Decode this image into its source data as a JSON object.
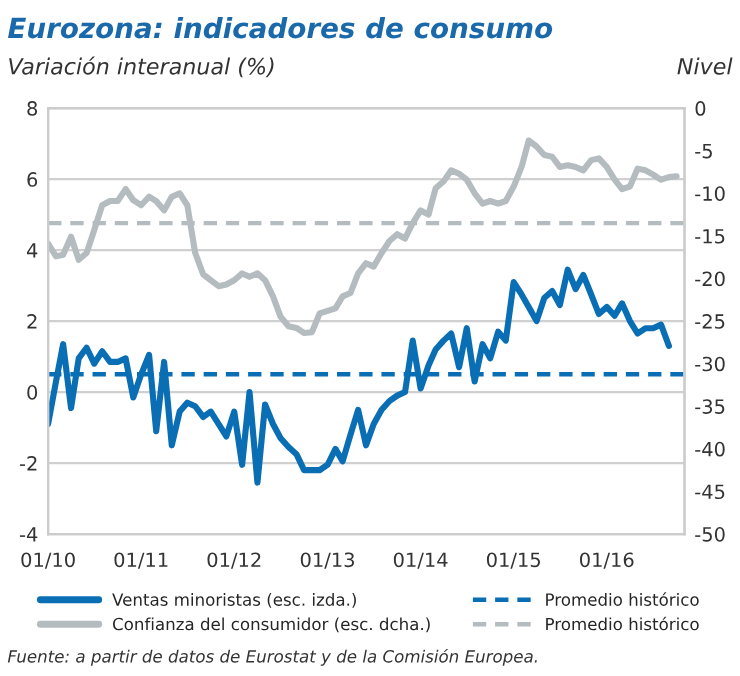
{
  "chart_data": {
    "type": "line",
    "title": "Eurozona: indicadores de consumo",
    "ylabel": "Variación interanual (%)",
    "y2label": "Nivel",
    "annotations": [
      "Fuente: a partir de datos de Eurostat y de la Comisión Europea."
    ],
    "x": [
      "2010-01",
      "2010-02",
      "2010-03",
      "2010-04",
      "2010-05",
      "2010-06",
      "2010-07",
      "2010-08",
      "2010-09",
      "2010-10",
      "2010-11",
      "2010-12",
      "2011-01",
      "2011-02",
      "2011-03",
      "2011-04",
      "2011-05",
      "2011-06",
      "2011-07",
      "2011-08",
      "2011-09",
      "2011-10",
      "2011-11",
      "2011-12",
      "2012-01",
      "2012-02",
      "2012-03",
      "2012-04",
      "2012-05",
      "2012-06",
      "2012-07",
      "2012-08",
      "2012-09",
      "2012-10",
      "2012-11",
      "2012-12",
      "2013-01",
      "2013-02",
      "2013-03",
      "2013-04",
      "2013-05",
      "2013-06",
      "2013-07",
      "2013-08",
      "2013-09",
      "2013-10",
      "2013-11",
      "2013-12",
      "2014-01",
      "2014-02",
      "2014-03",
      "2014-04",
      "2014-05",
      "2014-06",
      "2014-07",
      "2014-08",
      "2014-09",
      "2014-10",
      "2014-11",
      "2014-12",
      "2015-01",
      "2015-02",
      "2015-03",
      "2015-04",
      "2015-05",
      "2015-06",
      "2015-07",
      "2015-08",
      "2015-09",
      "2015-10",
      "2015-11",
      "2015-12",
      "2016-01",
      "2016-02",
      "2016-03",
      "2016-04",
      "2016-05",
      "2016-06",
      "2016-07",
      "2016-08",
      "2016-09",
      "2016-10"
    ],
    "series": [
      {
        "name": "Ventas minoristas (esc. izda.)",
        "color": "#0a6eb4",
        "axis": "y",
        "values": [
          -0.9,
          0.3,
          1.35,
          -0.45,
          0.95,
          1.25,
          0.8,
          1.15,
          0.85,
          0.85,
          0.95,
          -0.15,
          0.5,
          1.05,
          -1.1,
          0.85,
          -1.5,
          -0.55,
          -0.3,
          -0.4,
          -0.7,
          -0.55,
          -0.9,
          -1.25,
          -0.55,
          -2.05,
          0,
          -2.55,
          -0.35,
          -0.9,
          -1.3,
          -1.55,
          -1.75,
          -2.2,
          -2.2,
          -2.2,
          -2.05,
          -1.6,
          -1.95,
          -1.2,
          -0.5,
          -1.5,
          -0.9,
          -0.5,
          -0.25,
          -0.1,
          0,
          1.45,
          0.1,
          0.75,
          1.2,
          1.45,
          1.65,
          0.7,
          1.8,
          0.3,
          1.35,
          0.95,
          1.7,
          1.45,
          3.1,
          2.75,
          2.4,
          2.0,
          2.65,
          2.85,
          2.45,
          3.45,
          2.9,
          3.3,
          2.75,
          2.2,
          2.4,
          2.15,
          2.5,
          2.0,
          1.65,
          1.8,
          1.8,
          1.9,
          1.3,
          null
        ]
      },
      {
        "name": "Confianza del consumidor (esc. dcha.)",
        "color": "#b4bcc0",
        "axis": "y2",
        "values": [
          -15.9,
          -17.4,
          -17.2,
          -15.1,
          -17.8,
          -17.0,
          -14.3,
          -11.4,
          -10.9,
          -10.9,
          -9.5,
          -10.8,
          -11.4,
          -10.4,
          -10.9,
          -12.0,
          -10.4,
          -10.0,
          -11.4,
          -17.0,
          -19.5,
          -20.2,
          -20.9,
          -20.7,
          -20.2,
          -19.4,
          -19.8,
          -19.4,
          -20.2,
          -22.1,
          -24.5,
          -25.6,
          -25.8,
          -26.4,
          -26.3,
          -24.1,
          -23.8,
          -23.5,
          -22.1,
          -21.7,
          -19.4,
          -18.2,
          -18.6,
          -17.0,
          -15.6,
          -14.8,
          -15.3,
          -13.5,
          -12.0,
          -12.5,
          -9.4,
          -8.6,
          -7.3,
          -7.7,
          -8.4,
          -10.0,
          -11.2,
          -10.9,
          -11.2,
          -10.9,
          -9.2,
          -6.9,
          -3.8,
          -4.5,
          -5.5,
          -5.7,
          -6.9,
          -6.7,
          -6.9,
          -7.3,
          -6.1,
          -5.9,
          -6.9,
          -8.4,
          -9.5,
          -9.2,
          -7.1,
          -7.3,
          -7.8,
          -8.4,
          -8.1,
          -8.0
        ]
      }
    ],
    "ref_lines": [
      {
        "axis": "y",
        "value": 0.5,
        "label": "Promedio histórico",
        "color": "#0a6eb4",
        "line_style": "dashed"
      },
      {
        "axis": "y2",
        "value": -13.5,
        "label": "Promedio histórico",
        "color": "#b4bcc0",
        "line_style": "dashed"
      }
    ],
    "xlim": [
      "2010-01",
      "2016-11"
    ],
    "xticks": [
      {
        "value": "2010-01",
        "label": "01/10"
      },
      {
        "value": "2011-01",
        "label": "01/11"
      },
      {
        "value": "2012-01",
        "label": "01/12"
      },
      {
        "value": "2013-01",
        "label": "01/13"
      },
      {
        "value": "2014-01",
        "label": "01/14"
      },
      {
        "value": "2015-01",
        "label": "01/15"
      },
      {
        "value": "2016-01",
        "label": "01/16"
      }
    ],
    "ylim": [
      -4,
      8
    ],
    "yticks": [
      -4,
      -2,
      0,
      2,
      4,
      6,
      8
    ],
    "y2lim": [
      -50,
      0
    ],
    "y2ticks": [
      -50,
      -45,
      -40,
      -35,
      -30,
      -25,
      -20,
      -15,
      -10,
      -5,
      0
    ],
    "grid": "y",
    "legend": "bottom",
    "line_style": "solid",
    "marker": "none"
  }
}
